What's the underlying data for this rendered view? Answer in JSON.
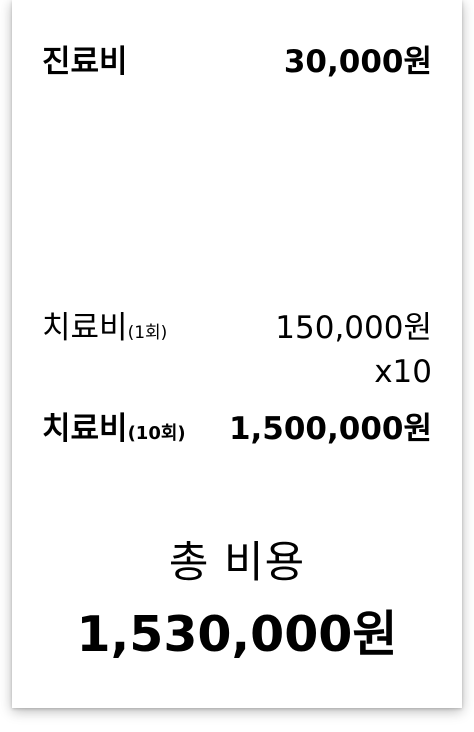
{
  "consultation": {
    "label": "진료비",
    "value": "30,000원"
  },
  "treatment_single": {
    "label": "치료비",
    "qualifier": "(1회)",
    "value": "150,000원"
  },
  "multiplier": "x10",
  "treatment_total": {
    "label": "치료비",
    "qualifier": "(10회)",
    "value": "1,500,000원"
  },
  "total": {
    "label": "총 비용",
    "value": "1,530,000원"
  }
}
